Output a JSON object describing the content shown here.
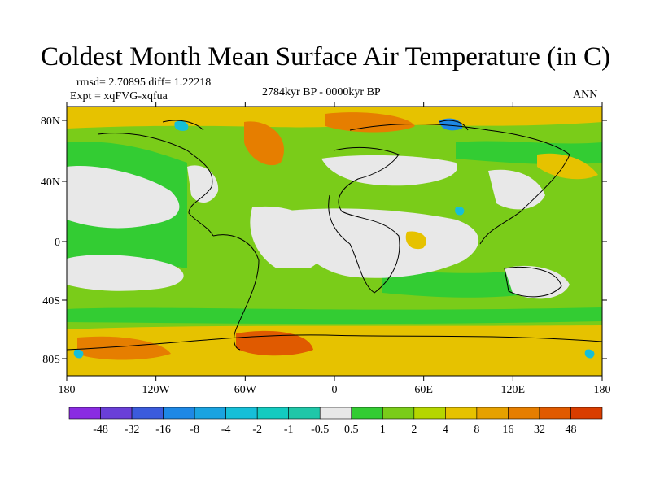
{
  "title": "Coldest Month Mean Surface Air Temperature (in C)",
  "stats": "rmsd= 2.70895 diff= 1.22218",
  "experiment": "Expt = xqFVG-xqfua",
  "period": "2784kyr BP - 0000kyr BP",
  "season": "ANN",
  "map": {
    "lat_ticks": [
      "80N",
      "40N",
      "0",
      "40S",
      "80S"
    ],
    "lon_ticks": [
      "180",
      "120W",
      "60W",
      "0",
      "60E",
      "120E",
      "180"
    ]
  },
  "colorbar": {
    "labels": [
      "-48",
      "-32",
      "-16",
      "-8",
      "-4",
      "-2",
      "-1",
      "-0.5",
      "0.5",
      "1",
      "2",
      "4",
      "8",
      "16",
      "32",
      "48"
    ],
    "colors": [
      "#8a2be2",
      "#6a3fd8",
      "#3b5bdc",
      "#1e88e5",
      "#1aa3e0",
      "#16bfd8",
      "#13cbc0",
      "#1fc7a8",
      "#e8e8e8",
      "#33cc33",
      "#7acc19",
      "#b5d600",
      "#e6c200",
      "#e6a100",
      "#e67e00",
      "#e05a00",
      "#d93d00"
    ]
  },
  "colors": {
    "land_ocean_background": "#7acc19",
    "neutral": "#e8e8e8",
    "warm_polar": "#e67e00",
    "coastline": "#000000"
  }
}
